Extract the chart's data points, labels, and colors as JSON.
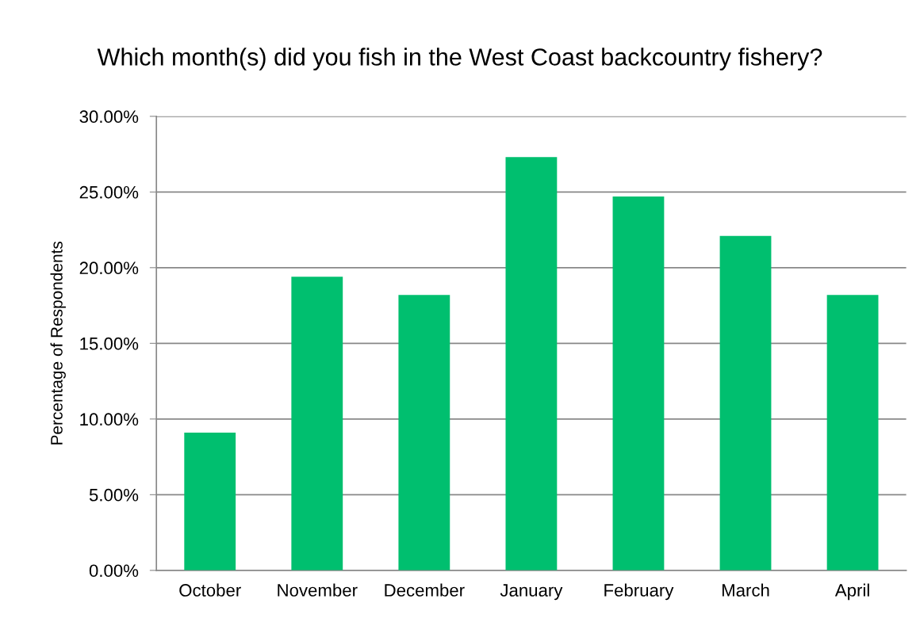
{
  "chart_data": {
    "type": "bar",
    "title": "Which month(s) did you fish in the West Coast backcountry fishery?",
    "ylabel": "Percentage of Respondents",
    "categories": [
      "October",
      "November",
      "December",
      "January",
      "February",
      "March",
      "April"
    ],
    "values": [
      9.1,
      19.4,
      18.2,
      27.3,
      24.7,
      22.1,
      18.2
    ],
    "color": "#00bf6f",
    "ylim": [
      0,
      30
    ],
    "yticks": [
      {
        "value": 0,
        "label": "0.00%"
      },
      {
        "value": 5,
        "label": "5.00%"
      },
      {
        "value": 10,
        "label": "10.00%"
      },
      {
        "value": 15,
        "label": "15.00%"
      },
      {
        "value": 20,
        "label": "20.00%"
      },
      {
        "value": 25,
        "label": "25.00%"
      },
      {
        "value": 30,
        "label": "30.00%"
      }
    ],
    "grid": "y"
  }
}
